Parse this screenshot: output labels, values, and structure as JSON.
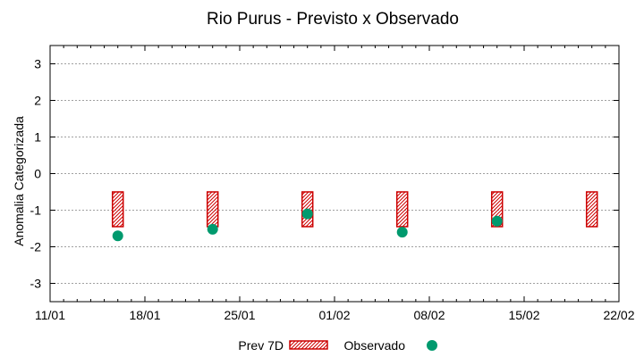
{
  "chart_data": {
    "type": "range-scatter",
    "title": "Rio Purus - Previsto x Observado",
    "xlabel": "",
    "ylabel": "Anomalia Categorizada",
    "xlim": [
      "2024-01-11",
      "2024-02-22"
    ],
    "ylim": [
      -3.5,
      3.5
    ],
    "x_tick_labels": [
      "11/01",
      "18/01",
      "25/01",
      "01/02",
      "08/02",
      "15/02",
      "22/02"
    ],
    "x_tick_dates": [
      "2024-01-11",
      "2024-01-18",
      "2024-01-25",
      "2024-02-01",
      "2024-02-08",
      "2024-02-15",
      "2024-02-22"
    ],
    "y_ticks": [
      3,
      2,
      1,
      0,
      -1,
      -2,
      -3
    ],
    "grid": true,
    "legend_position": "bottom",
    "series": [
      {
        "name": "Prev 7D",
        "kind": "range-box",
        "color": "#cc0000",
        "points": [
          {
            "x": "2024-01-16",
            "low": -1.45,
            "high": -0.5
          },
          {
            "x": "2024-01-23",
            "low": -1.45,
            "high": -0.5
          },
          {
            "x": "2024-01-30",
            "low": -1.45,
            "high": -0.5
          },
          {
            "x": "2024-02-06",
            "low": -1.45,
            "high": -0.5
          },
          {
            "x": "2024-02-13",
            "low": -1.45,
            "high": -0.5
          },
          {
            "x": "2024-02-20",
            "low": -1.45,
            "high": -0.5
          }
        ]
      },
      {
        "name": "Observado",
        "kind": "point",
        "color": "#009a6e",
        "points": [
          {
            "x": "2024-01-16",
            "y": -1.7
          },
          {
            "x": "2024-01-23",
            "y": -1.52
          },
          {
            "x": "2024-01-30",
            "y": -1.1
          },
          {
            "x": "2024-02-06",
            "y": -1.6
          },
          {
            "x": "2024-02-13",
            "y": -1.3
          }
        ]
      }
    ]
  }
}
